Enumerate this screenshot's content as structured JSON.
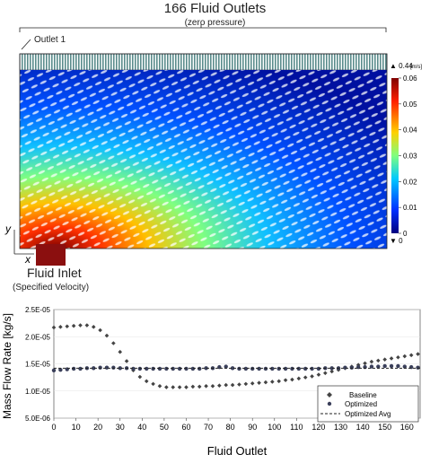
{
  "figure": {
    "title": "166 Fluid Outlets",
    "subtitle": "(zero pressure)",
    "outlet_label": "Outlet 1",
    "inlet_label": "Fluid Inlet",
    "inlet_sublabel": "(Specified Velocity)",
    "axis_y_symbol": "y",
    "axis_x_symbol": "x"
  },
  "colorbar": {
    "max_marker": "▲ 0.44",
    "units": "[m/s]",
    "min_marker": "▼ 0",
    "ticks": [
      "0.06",
      "0.05",
      "0.04",
      "0.03",
      "0.02",
      "0.01",
      "0"
    ],
    "colors": [
      "#00007f",
      "#0030ff",
      "#00c8ff",
      "#7fff7f",
      "#ffd000",
      "#ff2000",
      "#7f0000"
    ]
  },
  "chart_data": {
    "type": "scatter",
    "xlabel": "Fluid Outlet",
    "ylabel": "Mass Flow Rate [kg/s]",
    "xlim": [
      0,
      166
    ],
    "ylim": [
      5e-06,
      2.5e-05
    ],
    "xticks": [
      "0",
      "10",
      "20",
      "30",
      "40",
      "50",
      "60",
      "70",
      "80",
      "90",
      "100",
      "110",
      "120",
      "130",
      "140",
      "150",
      "160"
    ],
    "yticks": [
      "2.5E-05",
      "2.0E-05",
      "1.5E-05",
      "1.0E-05",
      "5.0E-06"
    ],
    "legend_position": "bottom-right",
    "series": [
      {
        "name": "Baseline",
        "marker": "diamond",
        "x": [
          0,
          3,
          6,
          9,
          12,
          15,
          18,
          21,
          24,
          27,
          30,
          33,
          36,
          39,
          42,
          45,
          48,
          51,
          54,
          57,
          60,
          63,
          66,
          69,
          72,
          75,
          78,
          81,
          84,
          87,
          90,
          93,
          96,
          99,
          102,
          105,
          108,
          111,
          114,
          117,
          120,
          123,
          126,
          129,
          132,
          135,
          138,
          141,
          144,
          147,
          150,
          153,
          156,
          159,
          162,
          165
        ],
        "y": [
          2.17e-05,
          2.18e-05,
          2.19e-05,
          2.2e-05,
          2.21e-05,
          2.21e-05,
          2.18e-05,
          2.12e-05,
          2.02e-05,
          1.88e-05,
          1.72e-05,
          1.55e-05,
          1.38e-05,
          1.26e-05,
          1.18e-05,
          1.13e-05,
          1.09e-05,
          1.07e-05,
          1.07e-05,
          1.07e-05,
          1.07e-05,
          1.08e-05,
          1.08e-05,
          1.09e-05,
          1.09e-05,
          1.1e-05,
          1.11e-05,
          1.11e-05,
          1.12e-05,
          1.13e-05,
          1.14e-05,
          1.15e-05,
          1.16e-05,
          1.17e-05,
          1.18e-05,
          1.2e-05,
          1.21e-05,
          1.23e-05,
          1.25e-05,
          1.27e-05,
          1.3e-05,
          1.33e-05,
          1.36e-05,
          1.39e-05,
          1.42e-05,
          1.45e-05,
          1.48e-05,
          1.51e-05,
          1.54e-05,
          1.56e-05,
          1.58e-05,
          1.6e-05,
          1.62e-05,
          1.64e-05,
          1.66e-05,
          1.68e-05
        ]
      },
      {
        "name": "Optimized",
        "marker": "circle",
        "x": [
          0,
          3,
          6,
          9,
          12,
          15,
          18,
          21,
          24,
          27,
          30,
          33,
          36,
          39,
          42,
          45,
          48,
          51,
          54,
          57,
          60,
          63,
          66,
          69,
          72,
          75,
          78,
          81,
          84,
          87,
          90,
          93,
          96,
          99,
          102,
          105,
          108,
          111,
          114,
          117,
          120,
          123,
          126,
          129,
          132,
          135,
          138,
          141,
          144,
          147,
          150,
          153,
          156,
          159,
          162,
          165
        ],
        "y": [
          1.38e-05,
          1.39e-05,
          1.4e-05,
          1.41e-05,
          1.41e-05,
          1.42e-05,
          1.42e-05,
          1.43e-05,
          1.43e-05,
          1.43e-05,
          1.42e-05,
          1.42e-05,
          1.41e-05,
          1.41e-05,
          1.41e-05,
          1.41e-05,
          1.41e-05,
          1.41e-05,
          1.41e-05,
          1.41e-05,
          1.41e-05,
          1.41e-05,
          1.41e-05,
          1.42e-05,
          1.42e-05,
          1.44e-05,
          1.45e-05,
          1.42e-05,
          1.41e-05,
          1.41e-05,
          1.41e-05,
          1.41e-05,
          1.41e-05,
          1.41e-05,
          1.41e-05,
          1.41e-05,
          1.41e-05,
          1.41e-05,
          1.41e-05,
          1.41e-05,
          1.41e-05,
          1.42e-05,
          1.42e-05,
          1.42e-05,
          1.43e-05,
          1.43e-05,
          1.44e-05,
          1.44e-05,
          1.45e-05,
          1.45e-05,
          1.46e-05,
          1.46e-05,
          1.46e-05,
          1.45e-05,
          1.44e-05,
          1.43e-05
        ]
      },
      {
        "name": "Optimized Avg",
        "marker": "dashed-line",
        "x": [
          0,
          166
        ],
        "y": [
          1.42e-05,
          1.42e-05
        ]
      }
    ]
  }
}
